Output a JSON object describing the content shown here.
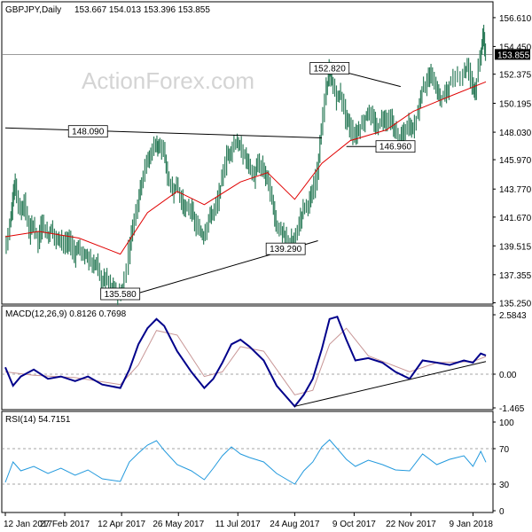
{
  "chart_data": [
    {
      "type": "bar",
      "panel": "price",
      "title": "GBPJPY,Daily",
      "ohlc": "153.667 154.013 153.396 153.855",
      "watermark": "ActionForex.com",
      "current_price": "153.855",
      "ylim": [
        135.35,
        157.6
      ],
      "yticks": [
        "156.610",
        "154.450",
        "152.375",
        "150.195",
        "148.030",
        "145.970",
        "143.770",
        "141.670",
        "139.515",
        "137.355",
        "135.250"
      ],
      "ytick_values": [
        156.61,
        154.45,
        152.375,
        150.195,
        148.03,
        145.97,
        143.77,
        141.67,
        139.515,
        137.355,
        135.25
      ],
      "x_dates": [
        "2017-01-12",
        "2018-01-19"
      ],
      "closes": [
        [
          "2017-01-12",
          139.3
        ],
        [
          "2017-01-16",
          141.2
        ],
        [
          "2017-01-18",
          143.0
        ],
        [
          "2017-01-20",
          144.2
        ],
        [
          "2017-01-24",
          142.0
        ],
        [
          "2017-01-27",
          142.8
        ],
        [
          "2017-01-31",
          140.5
        ],
        [
          "2017-02-03",
          141.2
        ],
        [
          "2017-02-07",
          139.8
        ],
        [
          "2017-02-10",
          141.4
        ],
        [
          "2017-02-14",
          140.2
        ],
        [
          "2017-02-17",
          140.9
        ],
        [
          "2017-02-21",
          139.9
        ],
        [
          "2017-02-24",
          140.2
        ],
        [
          "2017-02-28",
          139.5
        ],
        [
          "2017-03-03",
          139.9
        ],
        [
          "2017-03-07",
          138.9
        ],
        [
          "2017-03-10",
          139.5
        ],
        [
          "2017-03-14",
          138.7
        ],
        [
          "2017-03-17",
          138.9
        ],
        [
          "2017-03-21",
          137.9
        ],
        [
          "2017-03-24",
          138.3
        ],
        [
          "2017-03-28",
          136.8
        ],
        [
          "2017-03-31",
          137.2
        ],
        [
          "2017-04-04",
          136.4
        ],
        [
          "2017-04-07",
          136.2
        ],
        [
          "2017-04-11",
          135.9
        ],
        [
          "2017-04-13",
          136.1
        ],
        [
          "2017-04-18",
          139.1
        ],
        [
          "2017-04-21",
          141.0
        ],
        [
          "2017-04-25",
          142.8
        ],
        [
          "2017-04-28",
          144.5
        ],
        [
          "2017-05-02",
          145.8
        ],
        [
          "2017-05-05",
          146.4
        ],
        [
          "2017-05-09",
          147.4
        ],
        [
          "2017-05-11",
          146.6
        ],
        [
          "2017-05-15",
          146.9
        ],
        [
          "2017-05-18",
          144.6
        ],
        [
          "2017-05-22",
          143.6
        ],
        [
          "2017-05-25",
          144.2
        ],
        [
          "2017-05-29",
          142.8
        ],
        [
          "2017-06-01",
          142.2
        ],
        [
          "2017-06-05",
          142.4
        ],
        [
          "2017-06-08",
          141.2
        ],
        [
          "2017-06-12",
          140.6
        ],
        [
          "2017-06-15",
          140.3
        ],
        [
          "2017-06-19",
          141.6
        ],
        [
          "2017-06-22",
          142.0
        ],
        [
          "2017-06-26",
          142.8
        ],
        [
          "2017-06-29",
          144.6
        ],
        [
          "2017-07-03",
          146.2
        ],
        [
          "2017-07-06",
          146.7
        ],
        [
          "2017-07-10",
          147.4
        ],
        [
          "2017-07-13",
          146.8
        ],
        [
          "2017-07-17",
          146.2
        ],
        [
          "2017-07-20",
          145.6
        ],
        [
          "2017-07-24",
          144.6
        ],
        [
          "2017-07-27",
          145.7
        ],
        [
          "2017-07-31",
          145.2
        ],
        [
          "2017-08-03",
          144.6
        ],
        [
          "2017-08-07",
          142.9
        ],
        [
          "2017-08-10",
          141.1
        ],
        [
          "2017-08-14",
          140.6
        ],
        [
          "2017-08-17",
          140.1
        ],
        [
          "2017-08-21",
          139.8
        ],
        [
          "2017-08-24",
          139.9
        ],
        [
          "2017-08-28",
          141.2
        ],
        [
          "2017-08-31",
          142.4
        ],
        [
          "2017-09-04",
          142.7
        ],
        [
          "2017-09-07",
          143.3
        ],
        [
          "2017-09-11",
          145.2
        ],
        [
          "2017-09-14",
          148.3
        ],
        [
          "2017-09-18",
          151.4
        ],
        [
          "2017-09-20",
          152.7
        ],
        [
          "2017-09-22",
          151.8
        ],
        [
          "2017-09-26",
          150.6
        ],
        [
          "2017-09-29",
          150.9
        ],
        [
          "2017-10-03",
          149.2
        ],
        [
          "2017-10-06",
          148.4
        ],
        [
          "2017-10-10",
          147.7
        ],
        [
          "2017-10-13",
          148.3
        ],
        [
          "2017-10-17",
          148.8
        ],
        [
          "2017-10-20",
          149.6
        ],
        [
          "2017-10-24",
          148.9
        ],
        [
          "2017-10-27",
          148.3
        ],
        [
          "2017-10-31",
          149.1
        ],
        [
          "2017-11-03",
          149.0
        ],
        [
          "2017-11-07",
          148.9
        ],
        [
          "2017-11-10",
          148.1
        ],
        [
          "2017-11-14",
          147.6
        ],
        [
          "2017-11-17",
          147.9
        ],
        [
          "2017-11-21",
          148.7
        ],
        [
          "2017-11-24",
          148.2
        ],
        [
          "2017-11-28",
          149.6
        ],
        [
          "2017-12-01",
          151.4
        ],
        [
          "2017-12-05",
          151.8
        ],
        [
          "2017-12-08",
          152.4
        ],
        [
          "2017-12-12",
          151.3
        ],
        [
          "2017-12-15",
          150.5
        ],
        [
          "2017-12-19",
          150.9
        ],
        [
          "2017-12-22",
          151.6
        ],
        [
          "2017-12-27",
          152.1
        ],
        [
          "2018-01-02",
          152.5
        ],
        [
          "2018-01-05",
          153.0
        ],
        [
          "2018-01-09",
          151.7
        ],
        [
          "2018-01-11",
          151.1
        ],
        [
          "2018-01-15",
          153.6
        ],
        [
          "2018-01-17",
          155.3
        ],
        [
          "2018-01-19",
          153.855
        ]
      ],
      "ma_series": [
        [
          "2017-01-12",
          140.2
        ],
        [
          "2017-02-07",
          140.6
        ],
        [
          "2017-03-10",
          140.1
        ],
        [
          "2017-04-11",
          138.9
        ],
        [
          "2017-05-02",
          142.0
        ],
        [
          "2017-05-25",
          143.6
        ],
        [
          "2017-06-15",
          142.6
        ],
        [
          "2017-07-13",
          144.3
        ],
        [
          "2017-08-03",
          145.0
        ],
        [
          "2017-08-24",
          143.0
        ],
        [
          "2017-09-14",
          145.7
        ],
        [
          "2017-10-06",
          147.4
        ],
        [
          "2017-11-03",
          148.2
        ],
        [
          "2017-11-24",
          149.6
        ],
        [
          "2017-12-19",
          150.6
        ],
        [
          "2018-01-19",
          151.8
        ]
      ],
      "annotations": [
        {
          "label": "135.580",
          "date": "2017-04-11",
          "value": 135.58
        },
        {
          "label": "148.090",
          "date": "2017-03-17",
          "value": 148.09
        },
        {
          "label": "152.820",
          "date": "2017-09-20",
          "value": 152.82
        },
        {
          "label": "139.290",
          "date": "2017-08-17",
          "value": 139.29
        },
        {
          "label": "146.960",
          "date": "2017-11-10",
          "value": 146.96
        }
      ],
      "trendlines": [
        {
          "from": [
            "2017-01-12",
            148.35
          ],
          "to": [
            "2017-09-14",
            147.6
          ]
        },
        {
          "from": [
            "2017-04-11",
            135.58
          ],
          "to": [
            "2017-09-11",
            139.9
          ]
        },
        {
          "from": [
            "2017-09-20",
            152.82
          ],
          "to": [
            "2017-11-14",
            151.45
          ]
        },
        {
          "from": [
            "2017-10-03",
            146.96
          ],
          "to": [
            "2017-11-21",
            146.96
          ]
        }
      ]
    },
    {
      "type": "line",
      "panel": "macd",
      "title": "MACD(12,26,9) 0.8126 0.7698",
      "ylim": [
        -1.465,
        2.5843
      ],
      "yticks": [
        "2.5843",
        "0.00",
        "-1.465"
      ],
      "ytick_values": [
        2.5843,
        0.0,
        -1.465
      ],
      "zero_line": 0.0,
      "macd": [
        [
          "2017-01-12",
          0.3
        ],
        [
          "2017-01-18",
          -0.5
        ],
        [
          "2017-01-24",
          -0.1
        ],
        [
          "2017-02-03",
          0.2
        ],
        [
          "2017-02-14",
          -0.2
        ],
        [
          "2017-02-24",
          -0.1
        ],
        [
          "2017-03-07",
          -0.3
        ],
        [
          "2017-03-17",
          -0.1
        ],
        [
          "2017-03-28",
          -0.45
        ],
        [
          "2017-04-11",
          -0.6
        ],
        [
          "2017-04-18",
          0.2
        ],
        [
          "2017-04-25",
          1.3
        ],
        [
          "2017-05-02",
          2.0
        ],
        [
          "2017-05-09",
          2.4
        ],
        [
          "2017-05-15",
          2.1
        ],
        [
          "2017-05-25",
          1.0
        ],
        [
          "2017-06-05",
          0.1
        ],
        [
          "2017-06-15",
          -0.6
        ],
        [
          "2017-06-22",
          -0.2
        ],
        [
          "2017-06-29",
          0.5
        ],
        [
          "2017-07-06",
          1.3
        ],
        [
          "2017-07-13",
          1.5
        ],
        [
          "2017-07-20",
          1.2
        ],
        [
          "2017-07-31",
          0.6
        ],
        [
          "2017-08-10",
          -0.5
        ],
        [
          "2017-08-24",
          -1.4
        ],
        [
          "2017-08-31",
          -0.9
        ],
        [
          "2017-09-07",
          -0.2
        ],
        [
          "2017-09-14",
          1.1
        ],
        [
          "2017-09-20",
          2.4
        ],
        [
          "2017-09-26",
          2.5
        ],
        [
          "2017-10-03",
          1.5
        ],
        [
          "2017-10-10",
          0.6
        ],
        [
          "2017-10-20",
          0.7
        ],
        [
          "2017-10-31",
          0.5
        ],
        [
          "2017-11-10",
          0.1
        ],
        [
          "2017-11-21",
          -0.2
        ],
        [
          "2017-12-01",
          0.6
        ],
        [
          "2017-12-12",
          0.5
        ],
        [
          "2017-12-22",
          0.4
        ],
        [
          "2018-01-02",
          0.6
        ],
        [
          "2018-01-09",
          0.5
        ],
        [
          "2018-01-15",
          0.9
        ],
        [
          "2018-01-19",
          0.8126
        ]
      ],
      "signal": [
        [
          "2017-01-12",
          0.1
        ],
        [
          "2017-02-03",
          -0.05
        ],
        [
          "2017-03-07",
          -0.15
        ],
        [
          "2017-04-11",
          -0.45
        ],
        [
          "2017-04-25",
          0.4
        ],
        [
          "2017-05-09",
          1.9
        ],
        [
          "2017-05-25",
          1.7
        ],
        [
          "2017-06-15",
          -0.1
        ],
        [
          "2017-06-29",
          0.1
        ],
        [
          "2017-07-13",
          1.2
        ],
        [
          "2017-07-31",
          1.0
        ],
        [
          "2017-08-24",
          -0.9
        ],
        [
          "2017-09-07",
          -0.7
        ],
        [
          "2017-09-20",
          1.3
        ],
        [
          "2017-10-03",
          2.0
        ],
        [
          "2017-10-20",
          0.8
        ],
        [
          "2017-11-21",
          0.1
        ],
        [
          "2017-12-12",
          0.5
        ],
        [
          "2018-01-09",
          0.55
        ],
        [
          "2018-01-19",
          0.7698
        ]
      ],
      "trendlines": [
        {
          "from": [
            "2017-08-24",
            -1.4
          ],
          "to": [
            "2018-01-19",
            0.55
          ]
        }
      ]
    },
    {
      "type": "line",
      "panel": "rsi",
      "title": "RSI(14) 54.7151",
      "ylim": [
        0,
        100
      ],
      "yticks": [
        "100",
        "70",
        "30",
        "0"
      ],
      "ytick_values": [
        100,
        70,
        30,
        0
      ],
      "levels": [
        70,
        30
      ],
      "rsi": [
        [
          "2017-01-12",
          32
        ],
        [
          "2017-01-18",
          55
        ],
        [
          "2017-01-24",
          45
        ],
        [
          "2017-02-03",
          50
        ],
        [
          "2017-02-14",
          42
        ],
        [
          "2017-02-24",
          48
        ],
        [
          "2017-03-07",
          40
        ],
        [
          "2017-03-17",
          46
        ],
        [
          "2017-03-28",
          36
        ],
        [
          "2017-04-11",
          33
        ],
        [
          "2017-04-18",
          55
        ],
        [
          "2017-04-25",
          65
        ],
        [
          "2017-05-02",
          74
        ],
        [
          "2017-05-09",
          79
        ],
        [
          "2017-05-15",
          68
        ],
        [
          "2017-05-25",
          52
        ],
        [
          "2017-06-05",
          45
        ],
        [
          "2017-06-15",
          35
        ],
        [
          "2017-06-22",
          48
        ],
        [
          "2017-06-29",
          62
        ],
        [
          "2017-07-06",
          72
        ],
        [
          "2017-07-13",
          64
        ],
        [
          "2017-07-20",
          60
        ],
        [
          "2017-07-31",
          55
        ],
        [
          "2017-08-10",
          42
        ],
        [
          "2017-08-24",
          30
        ],
        [
          "2017-08-31",
          45
        ],
        [
          "2017-09-07",
          55
        ],
        [
          "2017-09-14",
          72
        ],
        [
          "2017-09-20",
          80
        ],
        [
          "2017-09-26",
          70
        ],
        [
          "2017-10-03",
          58
        ],
        [
          "2017-10-10",
          50
        ],
        [
          "2017-10-20",
          57
        ],
        [
          "2017-10-31",
          52
        ],
        [
          "2017-11-10",
          46
        ],
        [
          "2017-11-21",
          45
        ],
        [
          "2017-12-01",
          64
        ],
        [
          "2017-12-12",
          52
        ],
        [
          "2017-12-22",
          58
        ],
        [
          "2018-01-02",
          62
        ],
        [
          "2018-01-09",
          50
        ],
        [
          "2018-01-15",
          67
        ],
        [
          "2018-01-19",
          54.7151
        ]
      ]
    }
  ],
  "x_axis": {
    "labels": [
      "12 Jan 2017",
      "27 Feb 2017",
      "12 Apr 2017",
      "26 May 2017",
      "11 Jul 2017",
      "24 Aug 2017",
      "9 Oct 2017",
      "22 Nov 2017",
      "9 Jan 2018"
    ],
    "dates": [
      "2017-01-12",
      "2017-02-27",
      "2017-04-12",
      "2017-05-26",
      "2017-07-11",
      "2017-08-24",
      "2017-10-09",
      "2017-11-22",
      "2018-01-09"
    ]
  },
  "colors": {
    "price_bars": "#2e7d5b",
    "moving_average": "#e00000",
    "macd": "#00008b",
    "signal": "#c89696",
    "rsi": "#2299dd",
    "trendline": "#000000",
    "current_price_bg": "#000000",
    "watermark": "#d4d4d4"
  }
}
